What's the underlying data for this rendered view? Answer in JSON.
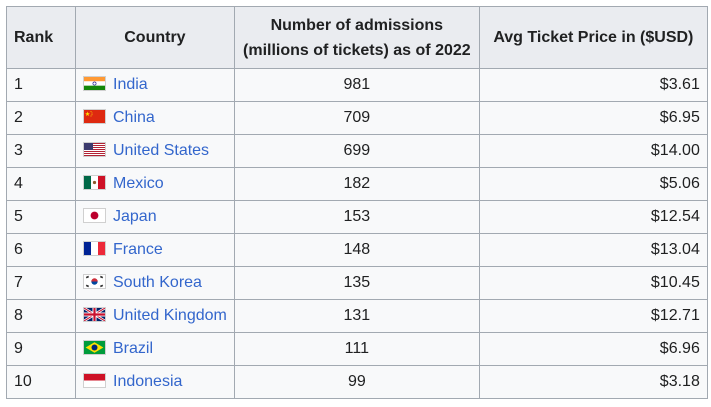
{
  "headers": {
    "rank": "Rank",
    "country": "Country",
    "admissions_line1": "Number of admissions",
    "admissions_line2": "(millions of tickets) as of 2022",
    "price": "Avg Ticket Price in ($USD)"
  },
  "rows": [
    {
      "rank": "1",
      "country": "India",
      "flag": "india-flag-icon",
      "admissions": "981",
      "price": "$3.61"
    },
    {
      "rank": "2",
      "country": "China",
      "flag": "china-flag-icon",
      "admissions": "709",
      "price": "$6.95"
    },
    {
      "rank": "3",
      "country": "United States",
      "flag": "united-states-flag-icon",
      "admissions": "699",
      "price": "$14.00"
    },
    {
      "rank": "4",
      "country": "Mexico",
      "flag": "mexico-flag-icon",
      "admissions": "182",
      "price": "$5.06"
    },
    {
      "rank": "5",
      "country": "Japan",
      "flag": "japan-flag-icon",
      "admissions": "153",
      "price": "$12.54"
    },
    {
      "rank": "6",
      "country": "France",
      "flag": "france-flag-icon",
      "admissions": "148",
      "price": "$13.04"
    },
    {
      "rank": "7",
      "country": "South Korea",
      "flag": "south-korea-flag-icon",
      "admissions": "135",
      "price": "$10.45"
    },
    {
      "rank": "8",
      "country": "United Kingdom",
      "flag": "united-kingdom-flag-icon",
      "admissions": "131",
      "price": "$12.71"
    },
    {
      "rank": "9",
      "country": "Brazil",
      "flag": "brazil-flag-icon",
      "admissions": "111",
      "price": "$6.96"
    },
    {
      "rank": "10",
      "country": "Indonesia",
      "flag": "indonesia-flag-icon",
      "admissions": "99",
      "price": "$3.18"
    }
  ],
  "colors": {
    "link": "#3366cc",
    "header_bg": "#eaecf0",
    "cell_bg": "#f8f9fa",
    "border": "#a2a9b1"
  }
}
